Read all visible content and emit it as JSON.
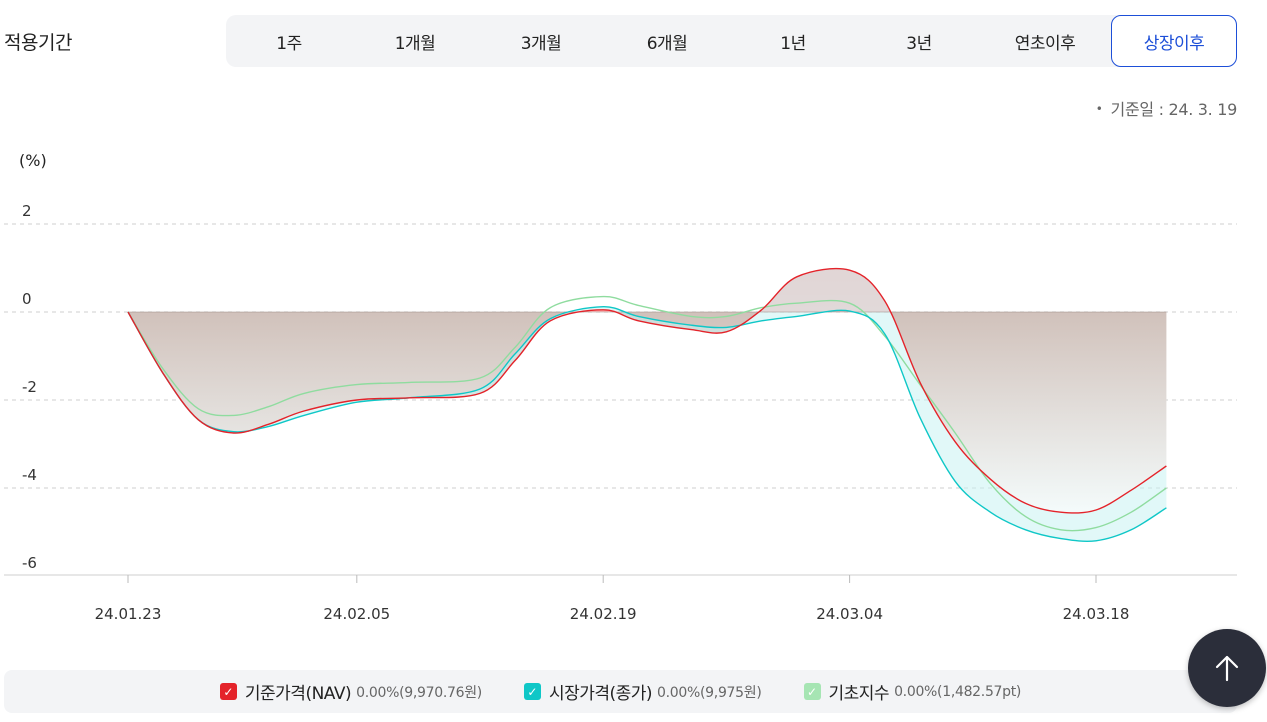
{
  "period": {
    "label": "적용기간",
    "options": [
      {
        "label": "1주"
      },
      {
        "label": "1개월"
      },
      {
        "label": "3개월"
      },
      {
        "label": "6개월"
      },
      {
        "label": "1년"
      },
      {
        "label": "3년"
      },
      {
        "label": "연초이후"
      },
      {
        "label": "상장이후"
      }
    ],
    "active_index": 7
  },
  "reference_date": {
    "bullet": "•",
    "text": "기준일 : 24. 3. 19"
  },
  "chart_data": {
    "type": "area",
    "unit_label": "(%)",
    "y_ticks": [
      2,
      0,
      -2,
      -4,
      -6
    ],
    "ylim": [
      -6,
      2
    ],
    "x_ticks": [
      "24.01.23",
      "24.02.05",
      "24.02.19",
      "24.03.04",
      "24.03.18"
    ],
    "baseline": 0,
    "grid": true,
    "series": [
      {
        "name": "기준가격(NAV)",
        "color": "#e4232a",
        "points": [
          [
            "24.01.23",
            0
          ],
          [
            "24.01.25",
            -1.4
          ],
          [
            "24.01.27",
            -2.45
          ],
          [
            "24.01.29",
            -2.75
          ],
          [
            "24.01.31",
            -2.55
          ],
          [
            "24.02.02",
            -2.25
          ],
          [
            "24.02.05",
            -2.0
          ],
          [
            "24.02.08",
            -1.95
          ],
          [
            "24.02.12",
            -1.85
          ],
          [
            "24.02.14",
            -1.1
          ],
          [
            "24.02.16",
            -0.2
          ],
          [
            "24.02.19",
            0.05
          ],
          [
            "24.02.21",
            -0.2
          ],
          [
            "24.02.24",
            -0.4
          ],
          [
            "24.02.26",
            -0.45
          ],
          [
            "24.02.28",
            0.05
          ],
          [
            "24.03.01",
            0.8
          ],
          [
            "24.03.04",
            0.95
          ],
          [
            "24.03.06",
            0.25
          ],
          [
            "24.03.08",
            -1.6
          ],
          [
            "24.03.10",
            -2.95
          ],
          [
            "24.03.12",
            -3.8
          ],
          [
            "24.03.14",
            -4.35
          ],
          [
            "24.03.16",
            -4.55
          ],
          [
            "24.03.18",
            -4.5
          ],
          [
            "24.03.20",
            -4.05
          ],
          [
            "24.03.22",
            -3.5
          ]
        ]
      },
      {
        "name": "시장가격(종가)",
        "color": "#0fc7c7",
        "points": [
          [
            "24.01.23",
            0
          ],
          [
            "24.01.25",
            -1.4
          ],
          [
            "24.01.27",
            -2.45
          ],
          [
            "24.01.29",
            -2.72
          ],
          [
            "24.01.31",
            -2.6
          ],
          [
            "24.02.02",
            -2.35
          ],
          [
            "24.02.05",
            -2.05
          ],
          [
            "24.02.08",
            -1.95
          ],
          [
            "24.02.12",
            -1.75
          ],
          [
            "24.02.14",
            -0.95
          ],
          [
            "24.02.16",
            -0.15
          ],
          [
            "24.02.19",
            0.12
          ],
          [
            "24.02.21",
            -0.1
          ],
          [
            "24.02.24",
            -0.3
          ],
          [
            "24.02.26",
            -0.35
          ],
          [
            "24.02.28",
            -0.2
          ],
          [
            "24.03.01",
            -0.1
          ],
          [
            "24.03.04",
            0.02
          ],
          [
            "24.03.06",
            -0.5
          ],
          [
            "24.03.08",
            -2.4
          ],
          [
            "24.03.10",
            -3.85
          ],
          [
            "24.03.12",
            -4.55
          ],
          [
            "24.03.14",
            -4.95
          ],
          [
            "24.03.16",
            -5.15
          ],
          [
            "24.03.18",
            -5.2
          ],
          [
            "24.03.20",
            -4.95
          ],
          [
            "24.03.22",
            -4.45
          ]
        ]
      },
      {
        "name": "기초지수",
        "color": "#8fdc9f",
        "points": [
          [
            "24.01.23",
            0
          ],
          [
            "24.01.25",
            -1.3
          ],
          [
            "24.01.27",
            -2.2
          ],
          [
            "24.01.29",
            -2.35
          ],
          [
            "24.01.31",
            -2.15
          ],
          [
            "24.02.02",
            -1.85
          ],
          [
            "24.02.05",
            -1.65
          ],
          [
            "24.02.08",
            -1.6
          ],
          [
            "24.02.12",
            -1.5
          ],
          [
            "24.02.14",
            -0.8
          ],
          [
            "24.02.16",
            0.1
          ],
          [
            "24.02.19",
            0.35
          ],
          [
            "24.02.21",
            0.15
          ],
          [
            "24.02.24",
            -0.1
          ],
          [
            "24.02.26",
            -0.1
          ],
          [
            "24.02.28",
            0.1
          ],
          [
            "24.03.01",
            0.2
          ],
          [
            "24.03.04",
            0.2
          ],
          [
            "24.03.06",
            -0.55
          ],
          [
            "24.03.08",
            -1.65
          ],
          [
            "24.03.10",
            -2.75
          ],
          [
            "24.03.12",
            -3.9
          ],
          [
            "24.03.14",
            -4.65
          ],
          [
            "24.03.16",
            -4.95
          ],
          [
            "24.03.18",
            -4.9
          ],
          [
            "24.03.20",
            -4.55
          ],
          [
            "24.03.22",
            -4.0
          ]
        ]
      }
    ],
    "legend_position": "bottom"
  },
  "legend": {
    "items": [
      {
        "name": "기준가격(NAV)",
        "value": "0.00%(9,970.76원)",
        "color": "#e4232a"
      },
      {
        "name": "시장가격(종가)",
        "value": "0.00%(9,975원)",
        "color": "#0fc7c7"
      },
      {
        "name": "기초지수",
        "value": "0.00%(1,482.57pt)",
        "color": "#a6e5b3"
      }
    ]
  },
  "scroll_top": {
    "icon": "arrow-up-icon"
  }
}
